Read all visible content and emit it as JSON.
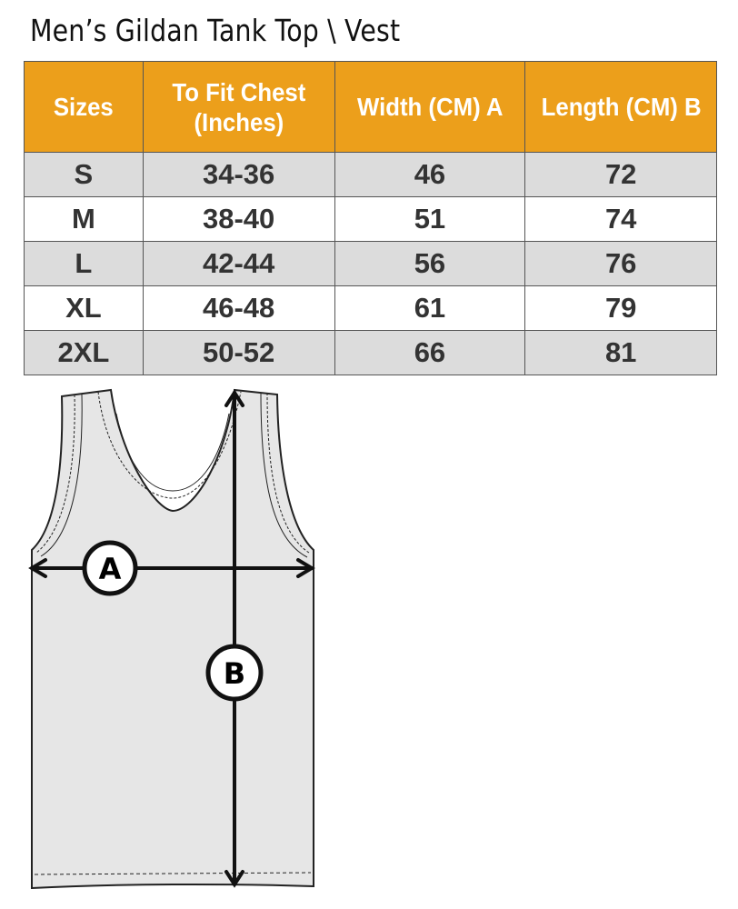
{
  "title": "Men’s Gildan Tank Top \\ Vest",
  "colors": {
    "header_bg": "#EC9F1B",
    "header_text": "#FFFFFF",
    "row_gray": "#DCDCDC",
    "cell_text": "#333333"
  },
  "table": {
    "headers": [
      "Sizes",
      "To Fit Chest (Inches)",
      "Width (CM) A",
      "Length  (CM) B"
    ],
    "rows": [
      [
        "S",
        "34-36",
        "46",
        "72"
      ],
      [
        "M",
        "38-40",
        "51",
        "74"
      ],
      [
        "L",
        "42-44",
        "56",
        "76"
      ],
      [
        "XL",
        "46-48",
        "61",
        "79"
      ],
      [
        "2XL",
        "50-52",
        "66",
        "81"
      ]
    ]
  },
  "diagram": {
    "label_a": "A",
    "label_b": "B"
  }
}
